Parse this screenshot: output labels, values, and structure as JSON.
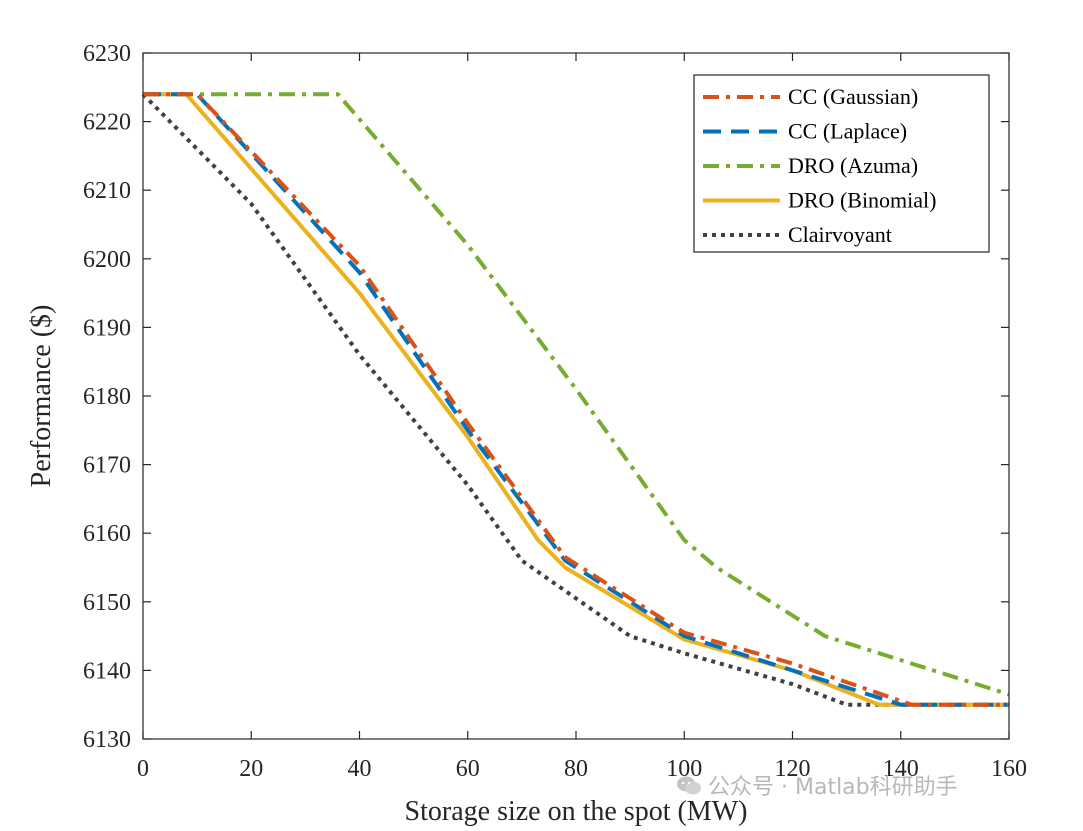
{
  "chart_data": {
    "type": "line",
    "title": "",
    "xlabel": "Storage size on the spot (MW)",
    "ylabel": "Performance ($)",
    "xlim": [
      0,
      160
    ],
    "ylim": [
      6130,
      6230
    ],
    "xticks": [
      0,
      20,
      40,
      60,
      80,
      100,
      120,
      140,
      160
    ],
    "yticks": [
      6130,
      6140,
      6150,
      6160,
      6170,
      6180,
      6190,
      6200,
      6210,
      6220,
      6230
    ],
    "grid": false,
    "legend_position": "top-right",
    "series": [
      {
        "name": "CC (Gaussian)",
        "color": "#D95319",
        "style": "dashdot",
        "points": [
          [
            0,
            6224
          ],
          [
            10,
            6224
          ],
          [
            40,
            6199
          ],
          [
            60,
            6176
          ],
          [
            78,
            6156.5
          ],
          [
            100,
            6145.5
          ],
          [
            120,
            6141
          ],
          [
            142,
            6135
          ],
          [
            160,
            6135
          ]
        ]
      },
      {
        "name": "CC (Laplace)",
        "color": "#0072BD",
        "style": "dashed",
        "points": [
          [
            0,
            6224
          ],
          [
            10,
            6224
          ],
          [
            40,
            6198
          ],
          [
            60,
            6175
          ],
          [
            78,
            6156
          ],
          [
            100,
            6145
          ],
          [
            120,
            6140
          ],
          [
            140,
            6135
          ],
          [
            160,
            6135
          ]
        ]
      },
      {
        "name": "DRO (Azuma)",
        "color": "#77AC30",
        "style": "dashdot",
        "points": [
          [
            0,
            6224
          ],
          [
            36,
            6224
          ],
          [
            60,
            6202
          ],
          [
            80,
            6181
          ],
          [
            100,
            6159
          ],
          [
            106,
            6155
          ],
          [
            126,
            6145
          ],
          [
            140,
            6141.5
          ],
          [
            160,
            6136.5
          ]
        ]
      },
      {
        "name": "DRO (Binomial)",
        "color": "#EDB120",
        "style": "solid",
        "points": [
          [
            0,
            6224
          ],
          [
            8,
            6224
          ],
          [
            40,
            6195
          ],
          [
            60,
            6174
          ],
          [
            73,
            6159
          ],
          [
            78,
            6155
          ],
          [
            100,
            6144.5
          ],
          [
            120,
            6140
          ],
          [
            136,
            6135
          ],
          [
            160,
            6135
          ]
        ]
      },
      {
        "name": "Clairvoyant",
        "color": "#404040",
        "style": "dotted",
        "points": [
          [
            0,
            6224
          ],
          [
            20,
            6208
          ],
          [
            40,
            6186
          ],
          [
            60,
            6167
          ],
          [
            70,
            6156
          ],
          [
            80,
            6150.5
          ],
          [
            90,
            6145
          ],
          [
            100,
            6142.5
          ],
          [
            120,
            6138
          ],
          [
            130,
            6135
          ],
          [
            160,
            6135
          ]
        ]
      }
    ]
  },
  "watermark": {
    "icon": "wechat-icon",
    "text": "公众号 · Matlab科研助手"
  }
}
